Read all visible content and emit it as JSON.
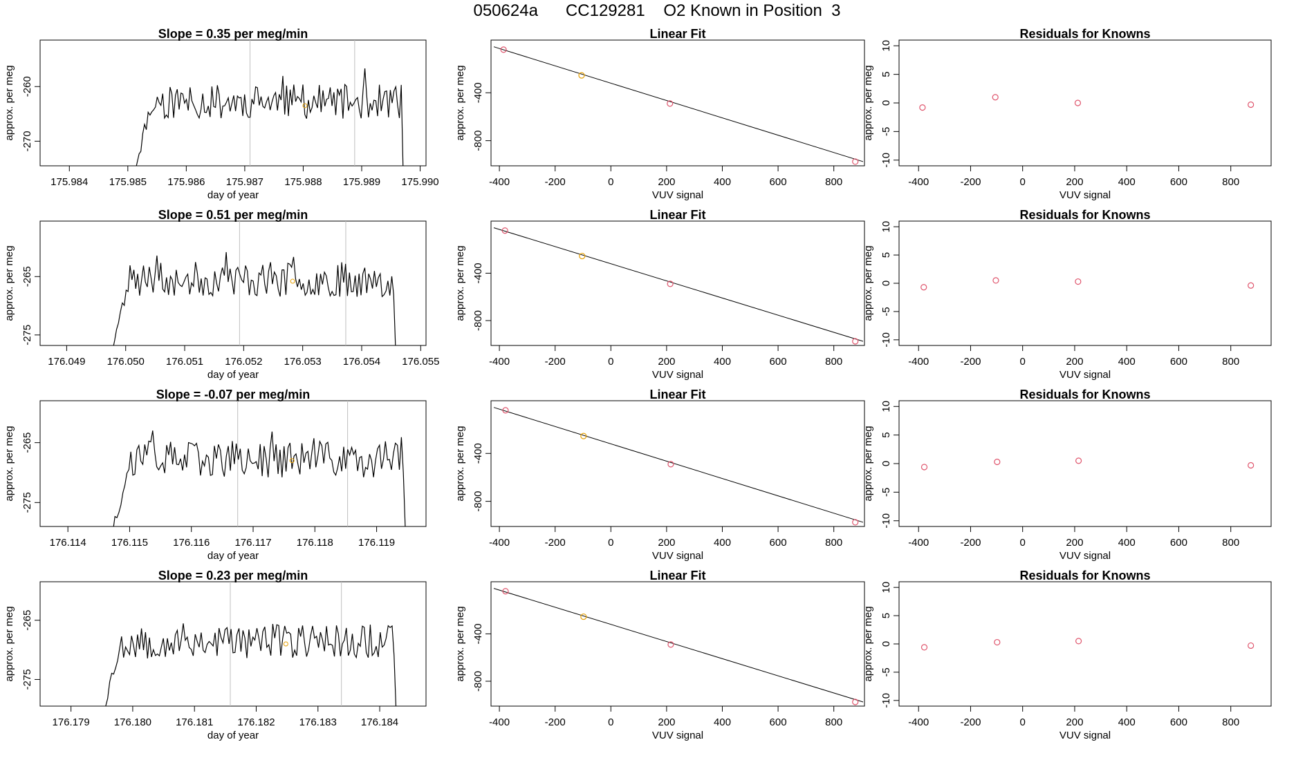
{
  "title": "050624a      CC129281    O2 Known in Position  3",
  "colors": {
    "trace": "#000000",
    "marker_orange": "#e69f00",
    "marker_red": "#df536b",
    "vline": "#bebebe",
    "axis": "#000000"
  },
  "chart_data": [
    {
      "type": "line",
      "row": 1,
      "title": "Slope =  0.35  per meg/min",
      "xlabel": "day of year",
      "ylabel": "approx. per meg",
      "xlim": [
        175.9835,
        175.9901
      ],
      "ylim": [
        -274.5,
        -251.5
      ],
      "xticks": [
        "175.984",
        "175.985",
        "175.986",
        "175.987",
        "175.988",
        "175.989",
        "175.990"
      ],
      "yticks": [
        "-260",
        "-270"
      ],
      "vlines": [
        175.98709,
        175.98888
      ],
      "orange_point": {
        "x": 175.98803,
        "y": -263.5
      },
      "start": 175.98513,
      "end": 175.98977,
      "base": -262.8,
      "amp": 3.2,
      "seed": 11,
      "series": [
        {
          "values_note": "",
          "x": [],
          "y": []
        }
      ]
    },
    {
      "type": "line",
      "row": 2,
      "title": "Slope =  0.51  per meg/min",
      "xlabel": "day of year",
      "ylabel": "approx. per meg",
      "xlim": [
        176.04855,
        176.05509
      ],
      "ylim": [
        -276.8,
        -255.5
      ],
      "xticks": [
        "176.049",
        "176.050",
        "176.051",
        "176.052",
        "176.053",
        "176.054",
        "176.055"
      ],
      "yticks": [
        "-265",
        "-275"
      ],
      "vlines": [
        176.05193,
        176.05373
      ],
      "orange_point": {
        "x": 176.05283,
        "y": -265.8
      },
      "start": 176.04978,
      "end": 176.05464,
      "base": -265.5,
      "amp": 3.0,
      "seed": 23,
      "series": [
        {
          "values_note": "",
          "x": [],
          "y": []
        }
      ]
    },
    {
      "type": "line",
      "row": 3,
      "title": "Slope =  -0.07  per meg/min",
      "xlabel": "day of year",
      "ylabel": "approx. per meg",
      "xlim": [
        176.11355,
        176.1198
      ],
      "ylim": [
        -279.0,
        -258.0
      ],
      "xticks": [
        "176.114",
        "176.115",
        "176.116",
        "176.117",
        "176.118",
        "176.119"
      ],
      "yticks": [
        "-265",
        "-275"
      ],
      "vlines": [
        176.11675,
        176.11853
      ],
      "orange_point": {
        "x": 176.11763,
        "y": -268.0
      },
      "start": 176.11473,
      "end": 176.11953,
      "base": -267.8,
      "amp": 3.1,
      "seed": 37,
      "series": [
        {
          "values_note": "",
          "x": [],
          "y": []
        }
      ]
    },
    {
      "type": "line",
      "row": 4,
      "title": "Slope =  0.23  per meg/min",
      "xlabel": "day of year",
      "ylabel": "approx. per meg",
      "xlim": [
        176.1785,
        176.18475
      ],
      "ylim": [
        -279.5,
        -258.5
      ],
      "xticks": [
        "176.179",
        "176.180",
        "176.181",
        "176.182",
        "176.183",
        "176.184"
      ],
      "yticks": [
        "-265",
        "-275"
      ],
      "vlines": [
        176.18158,
        176.18338
      ],
      "orange_point": {
        "x": 176.18248,
        "y": -269.0
      },
      "start": 176.17953,
      "end": 176.18433,
      "base": -268.5,
      "amp": 3.0,
      "seed": 53,
      "series": [
        {
          "values_note": "",
          "x": [],
          "y": []
        }
      ]
    },
    {
      "type": "scatter",
      "row": 1,
      "title": "Linear Fit",
      "xlabel": "VUV signal",
      "ylabel": "approx. per meg",
      "xlim": [
        -430,
        910
      ],
      "ylim": [
        -1010,
        40
      ],
      "xticks": [
        "-400",
        "-200",
        "0",
        "200",
        "400",
        "600",
        "800"
      ],
      "yticks": [
        "-400",
        "-800"
      ],
      "fit_line": {
        "x": [
          -420,
          905
        ],
        "y": [
          -16,
          -975
        ]
      },
      "points": [
        {
          "x": -385,
          "y": -40,
          "color": "red"
        },
        {
          "x": -105,
          "y": -255,
          "color": "orange"
        },
        {
          "x": 212,
          "y": -490,
          "color": "red"
        },
        {
          "x": 877,
          "y": -975,
          "color": "red"
        }
      ]
    },
    {
      "type": "scatter",
      "row": 2,
      "title": "Linear Fit",
      "xlabel": "VUV signal",
      "ylabel": "approx. per meg",
      "xlim": [
        -430,
        910
      ],
      "ylim": [
        -1010,
        40
      ],
      "xticks": [
        "-400",
        "-200",
        "0",
        "200",
        "400",
        "600",
        "800"
      ],
      "yticks": [
        "-400",
        "-800"
      ],
      "fit_line": {
        "x": [
          -420,
          905
        ],
        "y": [
          -16,
          -975
        ]
      },
      "points": [
        {
          "x": -380,
          "y": -40,
          "color": "red"
        },
        {
          "x": -103,
          "y": -255,
          "color": "orange"
        },
        {
          "x": 213,
          "y": -490,
          "color": "red"
        },
        {
          "x": 877,
          "y": -975,
          "color": "red"
        }
      ]
    },
    {
      "type": "scatter",
      "row": 3,
      "title": "Linear Fit",
      "xlabel": "VUV signal",
      "ylabel": "approx. per meg",
      "xlim": [
        -430,
        910
      ],
      "ylim": [
        -1010,
        40
      ],
      "xticks": [
        "-400",
        "-200",
        "0",
        "200",
        "400",
        "600",
        "800"
      ],
      "yticks": [
        "-400",
        "-800"
      ],
      "fit_line": {
        "x": [
          -420,
          905
        ],
        "y": [
          -16,
          -975
        ]
      },
      "points": [
        {
          "x": -378,
          "y": -40,
          "color": "red"
        },
        {
          "x": -98,
          "y": -255,
          "color": "orange"
        },
        {
          "x": 215,
          "y": -490,
          "color": "red"
        },
        {
          "x": 877,
          "y": -975,
          "color": "red"
        }
      ]
    },
    {
      "type": "scatter",
      "row": 4,
      "title": "Linear Fit",
      "xlabel": "VUV signal",
      "ylabel": "approx. per meg",
      "xlim": [
        -430,
        910
      ],
      "ylim": [
        -1010,
        40
      ],
      "xticks": [
        "-400",
        "-200",
        "0",
        "200",
        "400",
        "600",
        "800"
      ],
      "yticks": [
        "-400",
        "-800"
      ],
      "fit_line": {
        "x": [
          -420,
          905
        ],
        "y": [
          -16,
          -975
        ]
      },
      "points": [
        {
          "x": -378,
          "y": -40,
          "color": "red"
        },
        {
          "x": -98,
          "y": -255,
          "color": "orange"
        },
        {
          "x": 215,
          "y": -490,
          "color": "red"
        },
        {
          "x": 877,
          "y": -975,
          "color": "red"
        }
      ]
    },
    {
      "type": "scatter",
      "row": 1,
      "title": "Residuals for Knowns",
      "xlabel": "VUV signal",
      "ylabel": "approx. per meg",
      "xlim": [
        -475,
        955
      ],
      "ylim": [
        -11,
        11
      ],
      "xticks": [
        "-400",
        "-200",
        "0",
        "200",
        "400",
        "600",
        "800"
      ],
      "yticks": [
        "10",
        "5",
        "0",
        "-5",
        "-10"
      ],
      "points": [
        {
          "x": -385,
          "y": -0.8,
          "color": "red"
        },
        {
          "x": -105,
          "y": 1.0,
          "color": "red"
        },
        {
          "x": 212,
          "y": 0.0,
          "color": "red"
        },
        {
          "x": 877,
          "y": -0.3,
          "color": "red"
        }
      ]
    },
    {
      "type": "scatter",
      "row": 2,
      "title": "Residuals for Knowns",
      "xlabel": "VUV signal",
      "ylabel": "approx. per meg",
      "xlim": [
        -475,
        955
      ],
      "ylim": [
        -11,
        11
      ],
      "xticks": [
        "-400",
        "-200",
        "0",
        "200",
        "400",
        "600",
        "800"
      ],
      "yticks": [
        "10",
        "5",
        "0",
        "-5",
        "-10"
      ],
      "points": [
        {
          "x": -380,
          "y": -0.7,
          "color": "red"
        },
        {
          "x": -103,
          "y": 0.5,
          "color": "red"
        },
        {
          "x": 213,
          "y": 0.3,
          "color": "red"
        },
        {
          "x": 877,
          "y": -0.4,
          "color": "red"
        }
      ]
    },
    {
      "type": "scatter",
      "row": 3,
      "title": "Residuals for Knowns",
      "xlabel": "VUV signal",
      "ylabel": "approx. per meg",
      "xlim": [
        -475,
        955
      ],
      "ylim": [
        -11,
        11
      ],
      "xticks": [
        "-400",
        "-200",
        "0",
        "200",
        "400",
        "600",
        "800"
      ],
      "yticks": [
        "10",
        "5",
        "0",
        "-5",
        "-10"
      ],
      "points": [
        {
          "x": -378,
          "y": -0.6,
          "color": "red"
        },
        {
          "x": -98,
          "y": 0.3,
          "color": "red"
        },
        {
          "x": 215,
          "y": 0.5,
          "color": "red"
        },
        {
          "x": 877,
          "y": -0.3,
          "color": "red"
        }
      ]
    },
    {
      "type": "scatter",
      "row": 4,
      "title": "Residuals for Knowns",
      "xlabel": "VUV signal",
      "ylabel": "approx. per meg",
      "xlim": [
        -475,
        955
      ],
      "ylim": [
        -11,
        11
      ],
      "xticks": [
        "-400",
        "-200",
        "0",
        "200",
        "400",
        "600",
        "800"
      ],
      "yticks": [
        "10",
        "5",
        "0",
        "-5",
        "-10"
      ],
      "points": [
        {
          "x": -378,
          "y": -0.6,
          "color": "red"
        },
        {
          "x": -98,
          "y": 0.3,
          "color": "red"
        },
        {
          "x": 215,
          "y": 0.5,
          "color": "red"
        },
        {
          "x": 877,
          "y": -0.3,
          "color": "red"
        }
      ]
    }
  ]
}
